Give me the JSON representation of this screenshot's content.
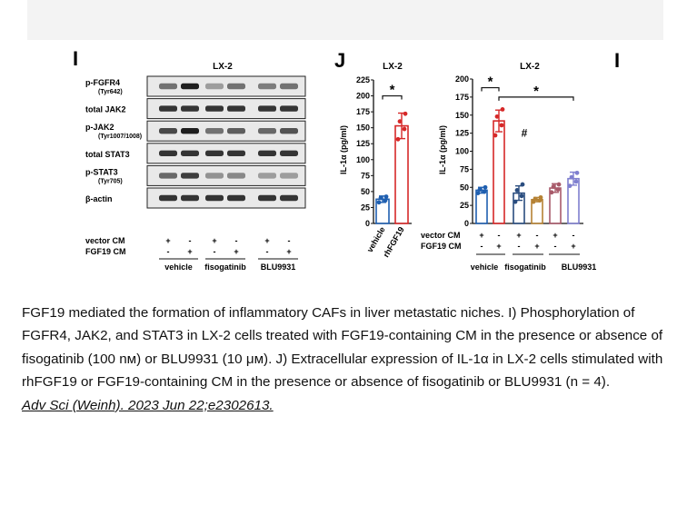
{
  "panel_i": {
    "letter": "I",
    "title": "LX-2",
    "rows": [
      {
        "label": "p-FGFR4",
        "sub": "(Tyr642)"
      },
      {
        "label": "total JAK2",
        "sub": ""
      },
      {
        "label": "p-JAK2",
        "sub": "(Tyr1007/1008)"
      },
      {
        "label": "total STAT3",
        "sub": ""
      },
      {
        "label": "p-STAT3",
        "sub": "(Tyr705)"
      },
      {
        "label": "β-actin",
        "sub": ""
      }
    ],
    "band_intensity": [
      [
        0.55,
        0.95,
        0.35,
        0.55,
        0.5,
        0.55
      ],
      [
        0.85,
        0.85,
        0.85,
        0.85,
        0.85,
        0.85
      ],
      [
        0.75,
        0.95,
        0.55,
        0.65,
        0.6,
        0.7
      ],
      [
        0.85,
        0.85,
        0.85,
        0.85,
        0.85,
        0.85
      ],
      [
        0.6,
        0.8,
        0.4,
        0.45,
        0.35,
        0.35
      ],
      [
        0.85,
        0.85,
        0.85,
        0.85,
        0.85,
        0.85
      ]
    ],
    "vector_cm_label": "vector CM",
    "fgf19_cm_label": "FGF19 CM",
    "vector_cm_signs": [
      "+",
      "-",
      "+",
      "-",
      "+",
      "-"
    ],
    "fgf19_cm_signs": [
      "-",
      "+",
      "-",
      "+",
      "-",
      "+"
    ],
    "groups": [
      "vehicle",
      "fisogatinib",
      "BLU9931"
    ]
  },
  "panel_j_left": {
    "letter": "J",
    "chart_data": {
      "type": "bar",
      "title": "LX-2",
      "ylabel": "IL-1α (pg/ml)",
      "ylim": [
        0,
        225
      ],
      "yticks": [
        "0",
        "25",
        "50",
        "75",
        "100",
        "125",
        "150",
        "175",
        "200",
        "225"
      ],
      "categories": [
        "vehicle",
        "rhFGF19"
      ],
      "values": [
        38,
        153
      ],
      "errors": [
        5,
        20
      ],
      "points": [
        [
          33,
          36,
          40,
          42
        ],
        [
          132,
          148,
          160,
          172
        ]
      ],
      "colors": [
        "#1f5fb0",
        "#d62828"
      ],
      "significance": [
        {
          "from": 0,
          "to": 1,
          "label": "*"
        }
      ]
    }
  },
  "panel_j_right": {
    "extra_letter": "I",
    "chart_data": {
      "type": "bar",
      "title": "LX-2",
      "ylabel": "IL-1α (pg/ml)",
      "ylim": [
        0,
        200
      ],
      "yticks": [
        "0",
        "25",
        "50",
        "75",
        "100",
        "125",
        "150",
        "175",
        "200"
      ],
      "values": [
        46,
        142,
        42,
        33,
        49,
        62
      ],
      "errors": [
        4,
        15,
        10,
        3,
        6,
        9
      ],
      "points": [
        [
          42,
          44,
          47,
          50
        ],
        [
          122,
          136,
          148,
          158
        ],
        [
          30,
          38,
          46,
          54
        ],
        [
          30,
          32,
          34,
          36
        ],
        [
          43,
          47,
          51,
          54
        ],
        [
          52,
          58,
          64,
          70
        ]
      ],
      "colors": [
        "#1f5fb0",
        "#d62828",
        "#2a4d7f",
        "#b58234",
        "#a85a6a",
        "#7f7fcf"
      ],
      "vector_cm_label": "vector CM",
      "fgf19_cm_label": "FGF19 CM",
      "vector_cm_signs": [
        "+",
        "-",
        "+",
        "-",
        "+",
        "-"
      ],
      "fgf19_cm_signs": [
        "-",
        "+",
        "-",
        "+",
        "-",
        "+"
      ],
      "groups": [
        "vehicle",
        "fisogatinib",
        "BLU9931"
      ],
      "significance": [
        {
          "from": 0,
          "to": 1,
          "label": "*",
          "level": 188
        },
        {
          "from": 1,
          "to": 5,
          "label": "*",
          "level": 175
        },
        {
          "from": 1,
          "to": 3,
          "label": "#",
          "level": 120
        }
      ]
    }
  },
  "caption": {
    "text": "FGF19 mediated the formation of inflammatory CAFs in liver metastatic niches. I) Phosphorylation of FGFR4, JAK2, and STAT3 in LX-2 cells treated with FGF19-containing CM in the presence or absence of fisogatinib (100 nᴍ) or BLU9931 (10 μᴍ). J) Extracellular expression of IL-1α in LX-2 cells stimulated with rhFGF19 or FGF19-containing CM in the presence or absence of fisogatinib or BLU9931 (n = 4).",
    "citation": "Adv Sci (Weinh). 2023 Jun 22;e2302613."
  }
}
